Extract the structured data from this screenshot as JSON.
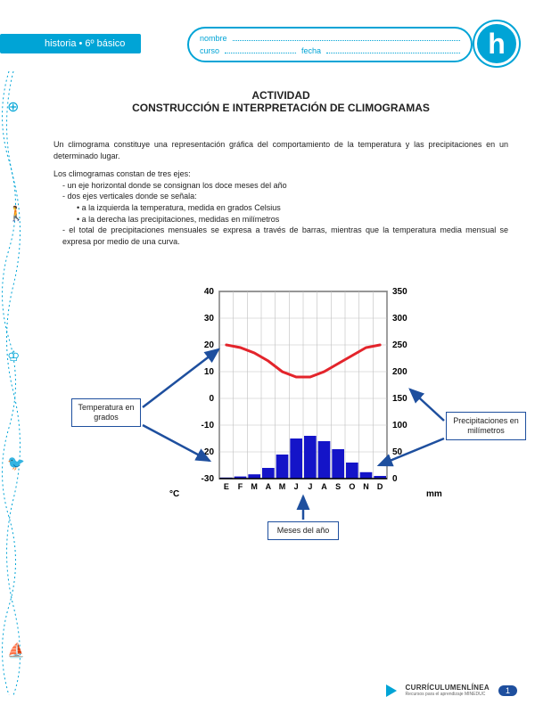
{
  "header": {
    "subject": "historia • 6º básico",
    "nombre_label": "nombre",
    "curso_label": "curso",
    "fecha_label": "fecha",
    "badge": "h"
  },
  "doc": {
    "title1": "ACTIVIDAD",
    "title2": "CONSTRUCCIÓN E INTERPRETACIÓN DE CLIMOGRAMAS",
    "para1": "Un climograma constituye una representación gráfica del comportamiento de la temperatura y las precipitaciones en un determinado lugar.",
    "list_intro": "Los climogramas constan de tres ejes:",
    "b1": "un eje horizontal donde se consignan los doce meses del año",
    "b2": "dos ejes verticales donde se señala:",
    "b2a": "a la izquierda la temperatura, medida en grados Celsius",
    "b2b": "a la derecha las precipitaciones, medidas en milímetros",
    "b3": "el total de precipitaciones mensuales se expresa a través de barras, mientras que la temperatura media mensual se expresa por medio de una curva."
  },
  "chart": {
    "type": "climogram",
    "months": [
      "E",
      "F",
      "M",
      "A",
      "M",
      "J",
      "J",
      "A",
      "S",
      "O",
      "N",
      "D"
    ],
    "left_axis": {
      "label": "°C",
      "min": -30,
      "max": 40,
      "ticks": [
        40,
        30,
        20,
        10,
        0,
        -10,
        -20,
        -30
      ],
      "fontsize": 10
    },
    "right_axis": {
      "label": "mm",
      "min": 0,
      "max": 350,
      "ticks": [
        350,
        300,
        250,
        200,
        150,
        100,
        50,
        0
      ],
      "fontsize": 10
    },
    "temp_line": {
      "values_c": [
        20,
        19,
        17,
        14,
        10,
        8,
        8,
        10,
        13,
        16,
        19,
        20
      ],
      "color": "#e3242b",
      "stroke_width": 3
    },
    "precip_bars": {
      "values_mm": [
        2,
        4,
        8,
        20,
        45,
        75,
        80,
        70,
        55,
        30,
        12,
        5
      ],
      "color": "#1414c8"
    },
    "grid_color": "#bfbfbf",
    "background": "#ffffff",
    "annotations": {
      "temp_label": "Temperatura en grados",
      "precip_label": "Precipitaciones en milímetros",
      "months_label": "Meses del año"
    },
    "arrow_color": "#1e4f9e"
  },
  "footer": {
    "brand": "CURRÍCULUMENLÍNEA",
    "sub": "Recursos para el aprendizaje MINEDUC",
    "page": "1"
  }
}
